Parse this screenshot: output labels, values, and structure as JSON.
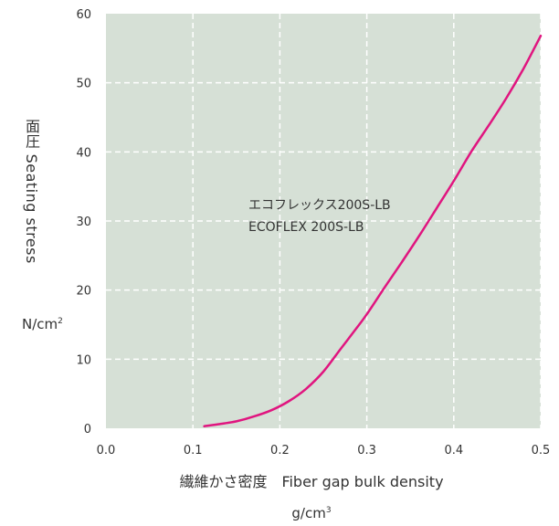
{
  "chart_data": {
    "type": "line",
    "title": "",
    "xlabel": "繊維かさ密度　Fiber gap bulk density",
    "xunit": "g/cm",
    "xunit_exp": "3",
    "ylabel": "面圧 Seating stress",
    "yunit": "N/cm",
    "yunit_exp": "2",
    "xlim": [
      0.0,
      0.5
    ],
    "ylim": [
      0,
      60
    ],
    "xticks": [
      "0.0",
      "0.1",
      "0.2",
      "0.3",
      "0.4",
      "0.5"
    ],
    "yticks": [
      "0",
      "10",
      "20",
      "30",
      "40",
      "50",
      "60"
    ],
    "grid": true,
    "series": [
      {
        "name_lines": [
          "エコフレックス200S-LB",
          "ECOFLEX 200S-LB"
        ],
        "x": [
          0.113,
          0.13,
          0.15,
          0.17,
          0.19,
          0.21,
          0.23,
          0.25,
          0.27,
          0.29,
          0.3,
          0.32,
          0.34,
          0.36,
          0.38,
          0.4,
          0.42,
          0.44,
          0.46,
          0.48,
          0.5
        ],
        "y": [
          0.3,
          0.6,
          1.0,
          1.7,
          2.6,
          3.9,
          5.7,
          8.2,
          11.5,
          14.8,
          16.5,
          20.3,
          24.0,
          27.8,
          31.8,
          35.8,
          40.0,
          43.8,
          47.7,
          52.0,
          56.8
        ]
      }
    ],
    "colors": {
      "plot_bg": "#d6e0d6",
      "grid": "#ffffff",
      "line": "#e0157f"
    }
  }
}
